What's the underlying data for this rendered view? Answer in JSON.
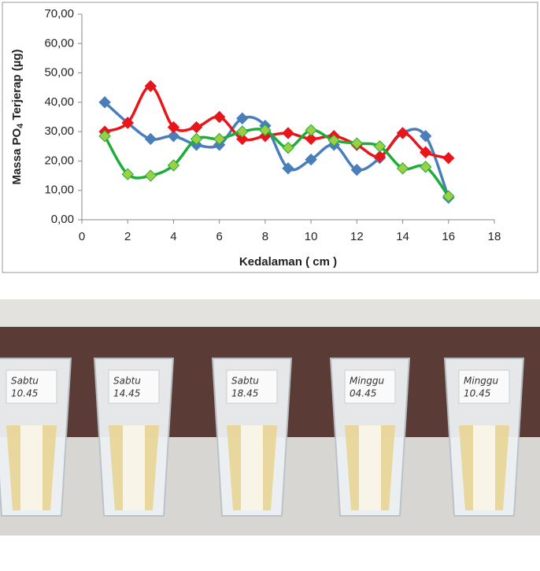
{
  "chart_data": {
    "type": "line",
    "ylabel": [
      "Massa PO",
      "4",
      " Terjerap (µg)"
    ],
    "xlabel": "Kedalaman ( cm )",
    "x": [
      1,
      2,
      3,
      4,
      5,
      6,
      7,
      8,
      9,
      10,
      11,
      12,
      13,
      14,
      15,
      16
    ],
    "series": [
      {
        "color": "#4a7ebb",
        "values": [
          40,
          33,
          27.5,
          28.5,
          25.5,
          25.5,
          34.5,
          32,
          17.5,
          20.5,
          25.5,
          17,
          21,
          29.5,
          28.5,
          7.5
        ]
      },
      {
        "color": "#e8161b",
        "values": [
          30,
          33,
          45.5,
          31.5,
          31.5,
          35,
          27.5,
          28.5,
          29.5,
          27.5,
          28.5,
          25.5,
          21.5,
          29.5,
          23,
          21
        ]
      },
      {
        "color": "#1fad3a",
        "values": [
          28.5,
          15.5,
          15,
          18.5,
          27.5,
          27.5,
          30,
          30.5,
          24.5,
          30.5,
          27,
          26,
          25,
          17.5,
          18,
          8
        ]
      }
    ],
    "marker_fill_green": "#9bd043",
    "xlim": [
      0,
      18
    ],
    "xticks": [
      0,
      2,
      4,
      6,
      8,
      10,
      12,
      14,
      16,
      18
    ],
    "ylim": [
      0,
      70
    ],
    "yticks": [
      {
        "value": 0,
        "label": "0,00"
      },
      {
        "value": 10,
        "label": "10,00"
      },
      {
        "value": 20,
        "label": "20,00"
      },
      {
        "value": 30,
        "label": "30,00"
      },
      {
        "value": 40,
        "label": "40,00"
      },
      {
        "value": 50,
        "label": "50,00"
      },
      {
        "value": 60,
        "label": "60,00"
      },
      {
        "value": 70,
        "label": "70,00"
      }
    ]
  },
  "photo": {
    "labels": [
      [
        "Sabtu",
        "10.45"
      ],
      [
        "Sabtu",
        "14.45"
      ],
      [
        "Sabtu",
        "18.45"
      ],
      [
        "Minggu",
        "04.45"
      ],
      [
        "Minggu",
        "10.45"
      ]
    ]
  }
}
